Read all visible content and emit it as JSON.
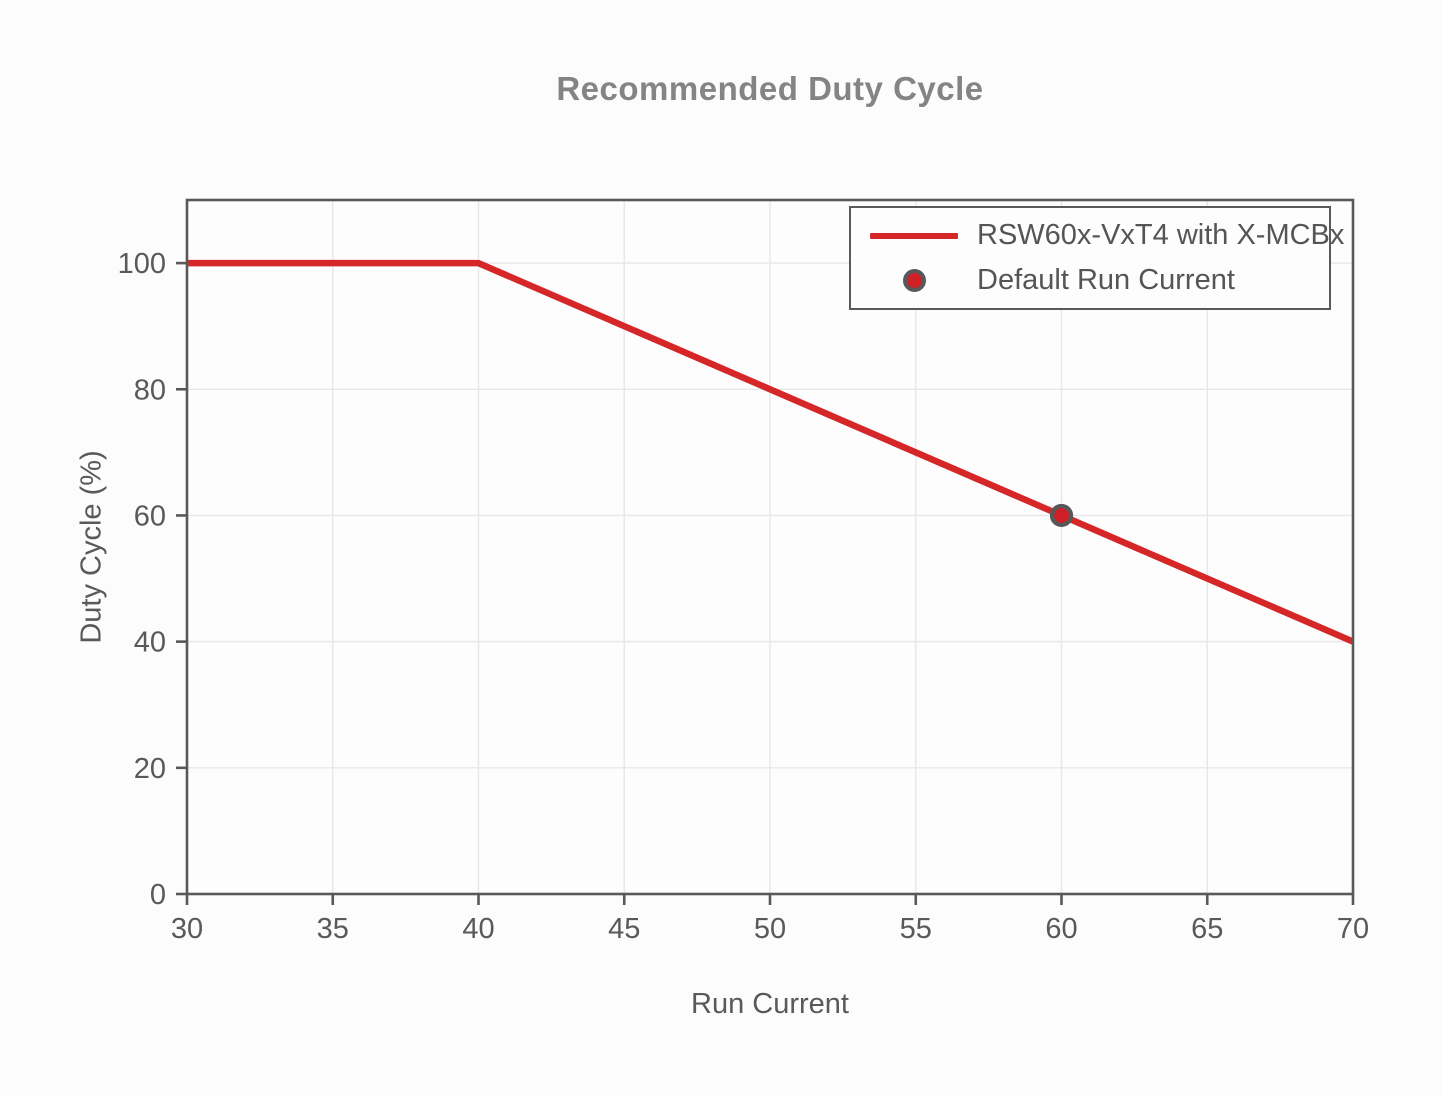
{
  "chart_data": {
    "type": "line",
    "title": "Recommended Duty Cycle",
    "xlabel": "Run Current",
    "ylabel": "Duty Cycle (%)",
    "xlim": [
      30,
      70
    ],
    "ylim": [
      0,
      110
    ],
    "x_ticks": [
      30,
      35,
      40,
      45,
      50,
      55,
      60,
      65,
      70
    ],
    "y_ticks": [
      0,
      20,
      40,
      60,
      80,
      100
    ],
    "grid": true,
    "legend_position": "upper right",
    "series": [
      {
        "name": "RSW60x-VxT4 with X-MCBx",
        "kind": "line",
        "x": [
          30,
          40,
          70
        ],
        "y": [
          100,
          100,
          40
        ]
      },
      {
        "name": "Default Run Current",
        "kind": "scatter",
        "x": [
          60
        ],
        "y": [
          60
        ]
      }
    ]
  },
  "colors": {
    "line_red": "#d62728",
    "marker_fill": "#d02027",
    "marker_edge": "#58585a",
    "axis": "#59595c",
    "grid": "#e7e7ea",
    "tick_text": "#595959",
    "title_text": "#848487",
    "plot_bg": "#fdfdfe"
  }
}
